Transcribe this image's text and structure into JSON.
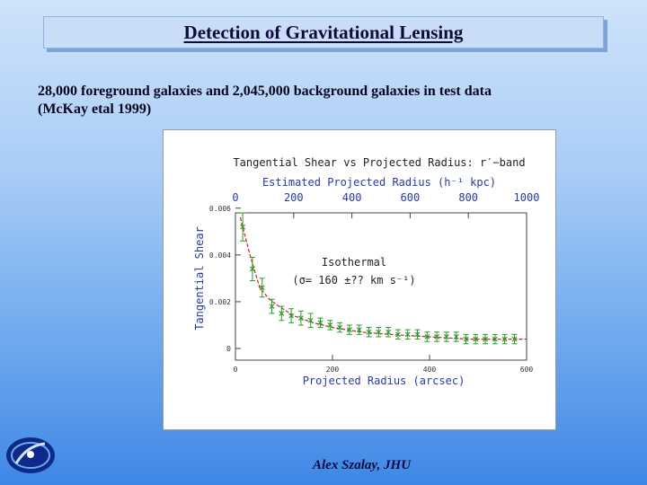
{
  "slide": {
    "title": "Detection of Gravitational Lensing",
    "subtitle_line1": "28,000 foreground galaxies and 2,045,000 background galaxies in test data",
    "subtitle_line2": "(McKay etal 1999)",
    "footer": "Alex Szalay, JHU",
    "logo_icon": "galaxy-logo-icon"
  },
  "chart_data": {
    "type": "scatter",
    "title": "Tangential Shear vs Projected Radius: r′−band",
    "xlabel": "Projected Radius (arcsec)",
    "ylabel": "Tangential Shear",
    "top_axis_label": "Estimated Projected Radius (h⁻¹ kpc)",
    "xlim": [
      0,
      600
    ],
    "ylim": [
      -0.0005,
      0.0058
    ],
    "x_ticks": [
      "0",
      "200",
      "400",
      "600"
    ],
    "y_ticks": [
      "0",
      "0.002",
      "0.004",
      "0.006"
    ],
    "top_ticks": [
      "0",
      "200",
      "400",
      "600",
      "800",
      "1000"
    ],
    "top_xlim": [
      0,
      1000
    ],
    "annotation_line1": "Isothermal",
    "annotation_line2": "(σ= 160 ±?? km s⁻¹)",
    "colors": {
      "points": "#2a9a2a",
      "model": "#cc2222",
      "frame": "#444444"
    },
    "series": [
      {
        "marker": "x",
        "x": [
          15,
          35,
          55,
          75,
          95,
          115,
          135,
          155,
          175,
          195,
          215,
          235,
          255,
          275,
          295,
          315,
          335,
          355,
          375,
          395,
          415,
          435,
          455,
          475,
          495,
          515,
          535,
          555,
          575
        ],
        "y": [
          0.0052,
          0.0034,
          0.0026,
          0.0018,
          0.0015,
          0.0014,
          0.0013,
          0.0012,
          0.0011,
          0.001,
          0.0009,
          0.0008,
          0.0008,
          0.0007,
          0.0007,
          0.0007,
          0.0006,
          0.0006,
          0.0006,
          0.0005,
          0.0005,
          0.0005,
          0.0005,
          0.0004,
          0.0004,
          0.0004,
          0.0004,
          0.0004,
          0.0004
        ],
        "err": [
          0.0006,
          0.0005,
          0.0004,
          0.0003,
          0.0003,
          0.0003,
          0.0003,
          0.0003,
          0.0002,
          0.0002,
          0.0002,
          0.0002,
          0.0002,
          0.0002,
          0.0002,
          0.0002,
          0.0002,
          0.0002,
          0.0002,
          0.0002,
          0.0002,
          0.0002,
          0.0002,
          0.0002,
          0.0002,
          0.0002,
          0.0002,
          0.0002,
          0.0002
        ]
      }
    ],
    "model": {
      "x": [
        10,
        30,
        50,
        70,
        90,
        120,
        160,
        200,
        260,
        320,
        400,
        480,
        560,
        600
      ],
      "y": [
        0.0056,
        0.004,
        0.0026,
        0.0021,
        0.0018,
        0.0014,
        0.0011,
        0.0009,
        0.0007,
        0.0006,
        0.0005,
        0.0004,
        0.0004,
        0.0004
      ]
    }
  }
}
